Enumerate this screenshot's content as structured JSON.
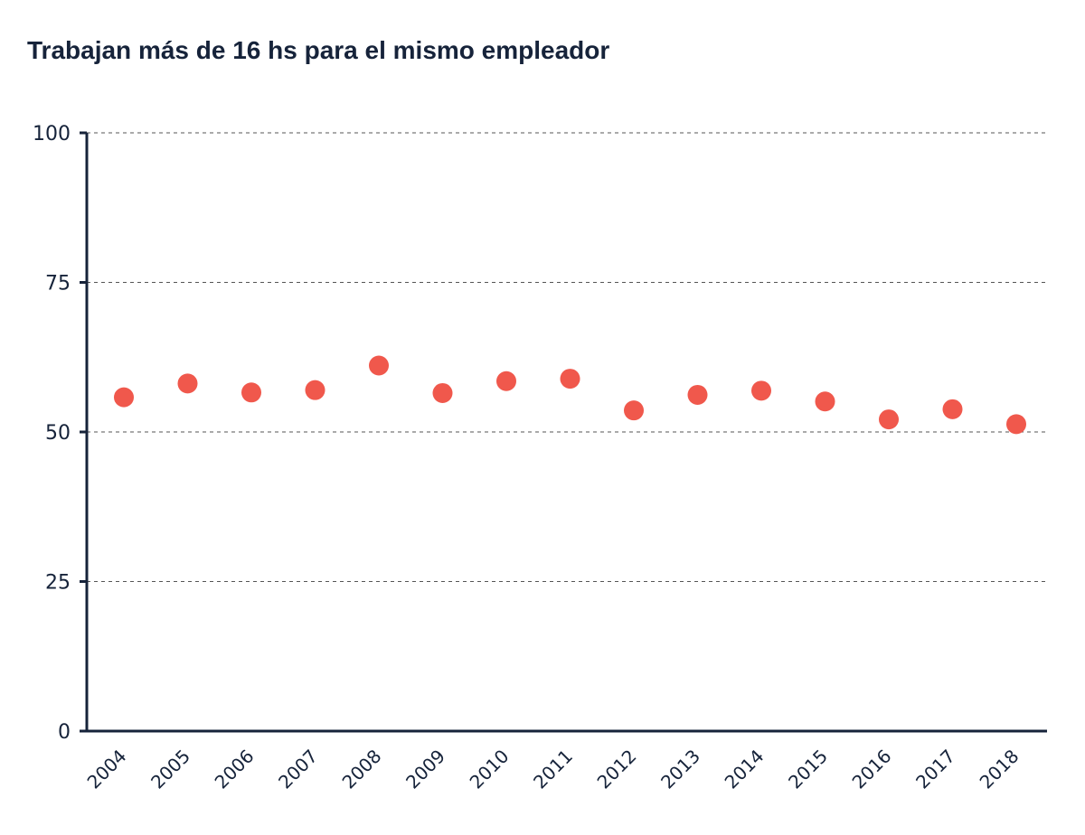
{
  "title": "Trabajan más de 16 hs para el mismo empleador",
  "colors": {
    "point": "#f0584c",
    "axis": "#16233a",
    "grid": "#555555",
    "text": "#16233a"
  },
  "chart_data": {
    "type": "scatter",
    "title": "Trabajan más de 16 hs para el mismo empleador",
    "xlabel": "",
    "ylabel": "",
    "categories": [
      "2004",
      "2005",
      "2006",
      "2007",
      "2008",
      "2009",
      "2010",
      "2011",
      "2012",
      "2013",
      "2014",
      "2015",
      "2016",
      "2017",
      "2018"
    ],
    "values": [
      55.8,
      58.1,
      56.6,
      57.0,
      61.1,
      56.5,
      58.5,
      58.9,
      53.6,
      56.2,
      56.9,
      55.1,
      52.1,
      53.8,
      51.3
    ],
    "ylim": [
      0,
      100
    ],
    "yticks": [
      "0",
      "25",
      "50",
      "75",
      "100"
    ],
    "grid": true,
    "legend": "none"
  }
}
